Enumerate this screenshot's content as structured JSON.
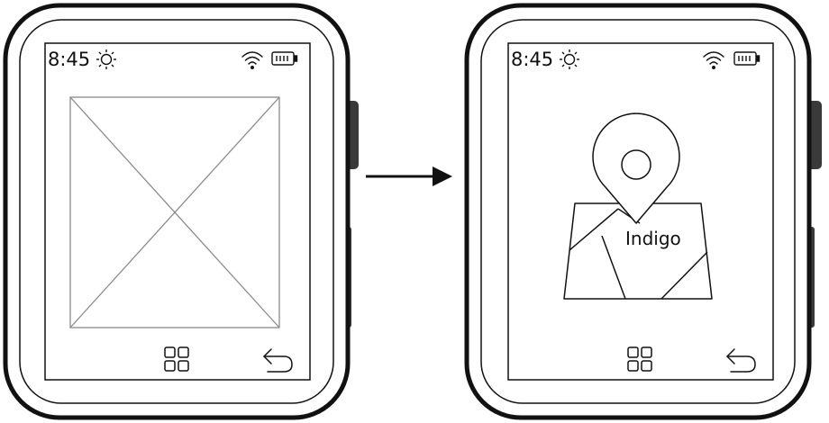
{
  "left_watch": {
    "status": {
      "time": "8:45",
      "weather_icon": "sun-icon",
      "signal_icon": "wifi-icon",
      "battery_icon": "battery-icon"
    },
    "content": {
      "type": "image-placeholder",
      "icon": "image-placeholder-icon"
    },
    "nav": {
      "apps_icon": "grid-icon",
      "back_icon": "back-arrow-icon"
    }
  },
  "transition": {
    "icon": "arrow-right-icon"
  },
  "right_watch": {
    "status": {
      "time": "8:45",
      "weather_icon": "sun-icon",
      "signal_icon": "wifi-icon",
      "battery_icon": "battery-icon"
    },
    "content": {
      "type": "map",
      "icon": "map-pin-icon",
      "location_label": "Indigo"
    },
    "nav": {
      "apps_icon": "grid-icon",
      "back_icon": "back-arrow-icon"
    }
  },
  "colors": {
    "stroke": "#111111",
    "button": "#3a3a3a",
    "placeholder_stroke": "#8a8a8a",
    "background": "#ffffff"
  }
}
